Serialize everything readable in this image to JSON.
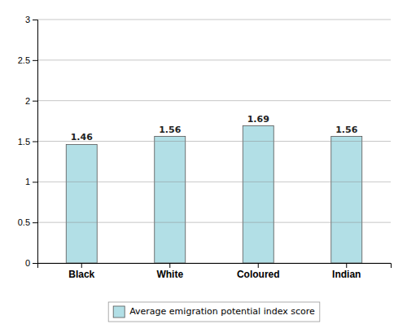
{
  "chart_data": {
    "type": "bar",
    "categories": [
      "Black",
      "White",
      "Coloured",
      "Indian"
    ],
    "series": [
      {
        "name": "Average emigration potential index score",
        "color": "#b2dfe6",
        "values": [
          1.46,
          1.56,
          1.69,
          1.56
        ]
      }
    ],
    "ylim": [
      0,
      3
    ],
    "yticks": [
      0,
      0.5,
      1,
      1.5,
      2,
      2.5,
      3
    ],
    "grid": true,
    "data_labels": true,
    "legend": "bottom"
  }
}
